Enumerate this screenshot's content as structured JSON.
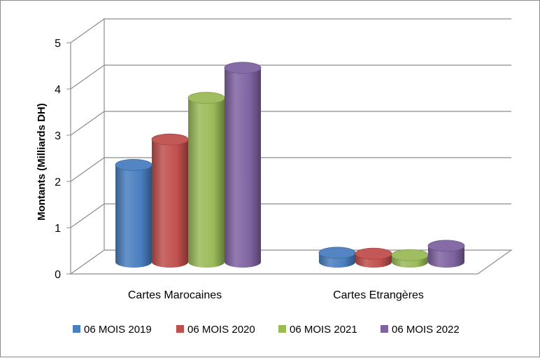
{
  "chart_data": {
    "type": "bar",
    "categories": [
      "Cartes Marocaines",
      "Cartes Etrangères"
    ],
    "series": [
      {
        "name": "06 MOIS 2019",
        "values": [
          2.1,
          0.2
        ],
        "color": "#4a7fc0"
      },
      {
        "name": "06 MOIS 2020",
        "values": [
          2.65,
          0.18
        ],
        "color": "#c0504d"
      },
      {
        "name": "06 MOIS 2021",
        "values": [
          3.55,
          0.15
        ],
        "color": "#9bbb59"
      },
      {
        "name": "06 MOIS 2022",
        "values": [
          4.2,
          0.35
        ],
        "color": "#8064a2"
      }
    ],
    "ylabel": "Montants (Milliards DH)",
    "ylim": [
      0,
      5
    ],
    "yticks": [
      "0",
      "1",
      "2",
      "3",
      "4",
      "5"
    ],
    "grid": true,
    "legend": "bottom",
    "style": "3d-cylinder"
  }
}
